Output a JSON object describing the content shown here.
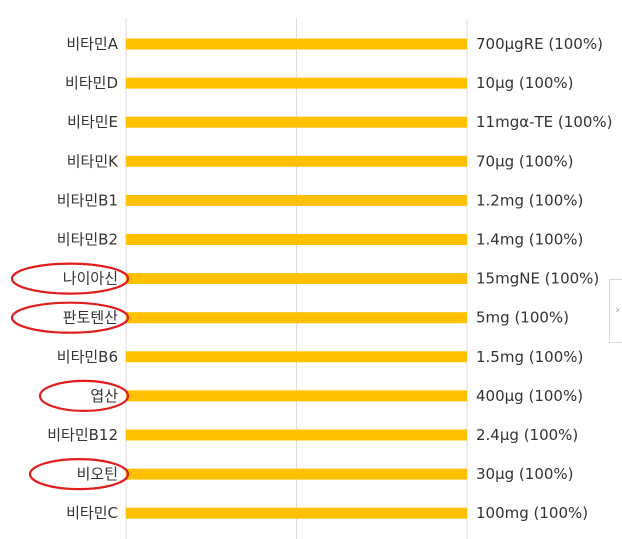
{
  "chart_data": {
    "type": "bar",
    "orientation": "horizontal",
    "categories": [
      "비타민A",
      "비타민D",
      "비타민E",
      "비타민K",
      "비타민B1",
      "비타민B2",
      "나이아신",
      "판토텐산",
      "비타민B6",
      "엽산",
      "비타민B12",
      "비오틴",
      "비타민C"
    ],
    "values": [
      100,
      100,
      100,
      100,
      100,
      100,
      100,
      100,
      100,
      100,
      100,
      100,
      100
    ],
    "value_labels": [
      "700μgRE (100%)",
      "10μg (100%)",
      "11mgα-TE (100%)",
      "70μg (100%)",
      "1.2mg (100%)",
      "1.4mg (100%)",
      "15mgNE (100%)",
      "5mg (100%)",
      "1.5mg (100%)",
      "400μg (100%)",
      "2.4μg (100%)",
      "30μg (100%)",
      "100mg (100%)"
    ],
    "highlighted": [
      "나이아신",
      "판토텐산",
      "엽산",
      "비오틴"
    ],
    "xlim": [
      0,
      100
    ],
    "grid": true,
    "bar_color": "#FFC000",
    "highlight_color": "#E01E1E"
  },
  "nav": {
    "next_icon": "chevron-right-icon",
    "next_glyph": "›"
  }
}
